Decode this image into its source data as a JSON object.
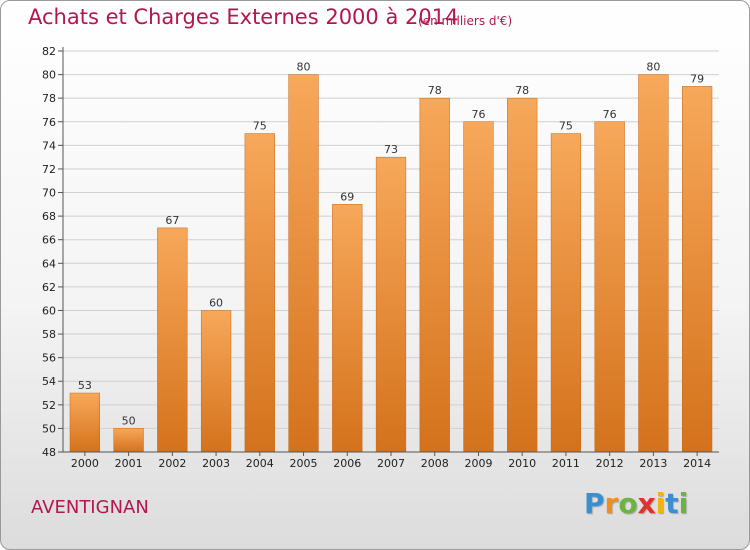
{
  "chart_data": {
    "type": "bar",
    "title": "Achats et Charges Externes 2000 à 2014",
    "subtitle": "(en milliers d'€)",
    "categories": [
      "2000",
      "2001",
      "2002",
      "2003",
      "2004",
      "2005",
      "2006",
      "2007",
      "2008",
      "2009",
      "2010",
      "2011",
      "2012",
      "2013",
      "2014"
    ],
    "values": [
      53,
      50,
      67,
      60,
      75,
      80,
      69,
      73,
      78,
      76,
      78,
      75,
      76,
      80,
      79
    ],
    "ylim": [
      48,
      82
    ],
    "yticks": [
      48,
      50,
      52,
      54,
      56,
      58,
      60,
      62,
      64,
      66,
      68,
      70,
      72,
      74,
      76,
      78,
      80,
      82
    ],
    "grid": true,
    "bar_color_top": "#f7a85a",
    "bar_color_bottom": "#d4721c"
  },
  "place_name": "AVENTIGNAN",
  "logo": {
    "letters": [
      "P",
      "r",
      "o",
      "x",
      "i",
      "t",
      "i"
    ],
    "colors": [
      "#3a8fd0",
      "#f28c1a",
      "#6cb33f",
      "#e0312b",
      "#f2b40a",
      "#3a8fd0",
      "#6cb33f"
    ]
  }
}
